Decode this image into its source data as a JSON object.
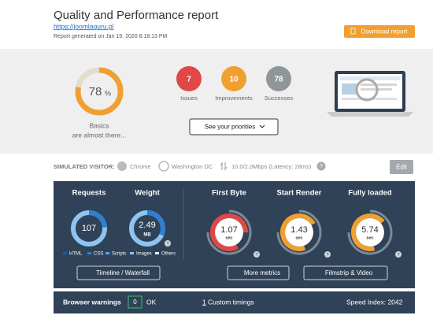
{
  "header": {
    "title": "Quality and Performance report",
    "url": "https://joomlaguru.pl",
    "generated": "Report generated on Jan 19, 2020 8:18:13 PM",
    "download": "Download report"
  },
  "summary": {
    "score": 78,
    "score_unit": "%",
    "status": [
      "Basics",
      "are almost there..."
    ],
    "counts": [
      {
        "value": 7,
        "label": "Issues"
      },
      {
        "value": 10,
        "label": "Improvements"
      },
      {
        "value": 78,
        "label": "Successes"
      }
    ],
    "button": "See your priorities"
  },
  "visitor": {
    "label": "SIMULATED VISITOR:",
    "browser": "Chrome",
    "location": "Washington DC",
    "connection": "10.0/2.0Mbps (Latency: 28ms)",
    "help": "?",
    "edit": "Edit"
  },
  "metrics": {
    "requests": {
      "title": "Requests",
      "value": 107
    },
    "weight": {
      "title": "Weight",
      "value": 2.49,
      "unit": "MB"
    },
    "legend": [
      "HTML",
      "CSS",
      "Scripts",
      "Images",
      "Others"
    ],
    "timings": [
      {
        "title": "First Byte",
        "value": 1.07,
        "unit": "sec"
      },
      {
        "title": "Start Render",
        "value": 1.43,
        "unit": "sec"
      },
      {
        "title": "Fully loaded",
        "value": 5.74,
        "unit": "sec"
      }
    ],
    "help": "?",
    "buttons": [
      "Timeline / Waterfall",
      "More metrics",
      "Filmstrip & Video"
    ]
  },
  "footer": {
    "warnings_label": "Browser warnings",
    "warnings": 0,
    "ok": "OK",
    "custom_count": 1,
    "custom_label": "Custom timings",
    "speed_index": "Speed Index: 2042"
  }
}
